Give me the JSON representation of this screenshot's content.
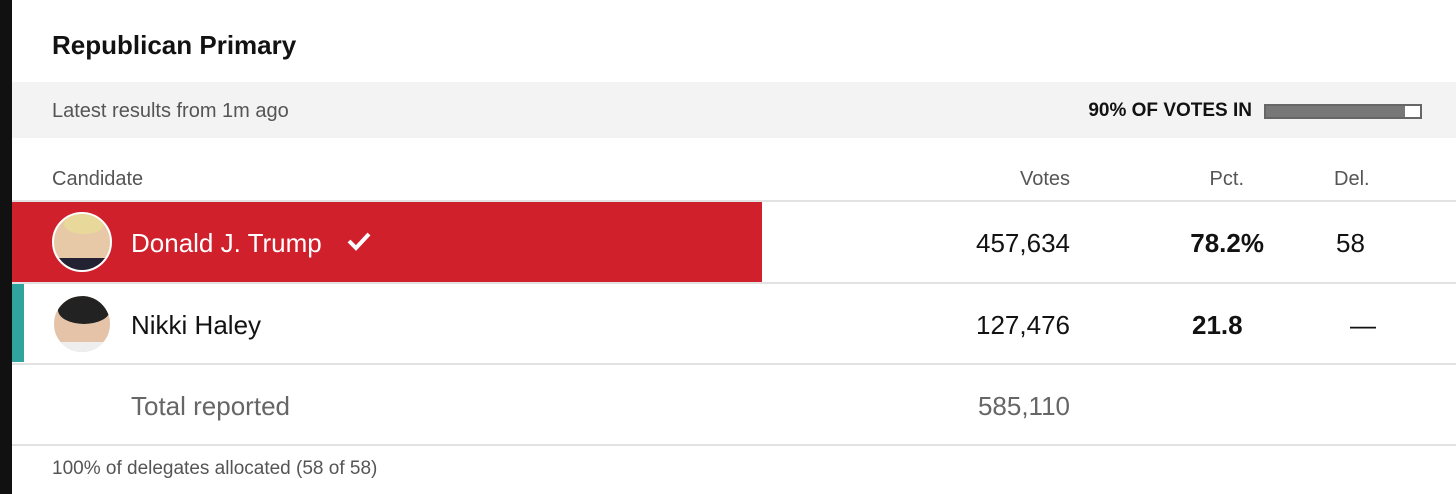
{
  "header": {
    "title": "Republican Primary"
  },
  "status": {
    "updated": "Latest results from 1m ago",
    "votes_in": {
      "value": 90,
      "label": "90% OF VOTES IN"
    }
  },
  "table": {
    "columns": [
      "Candidate",
      "Votes",
      "Pct.",
      "Del."
    ],
    "rows": [
      [
        "Donald J. Trump",
        "457,634",
        "78.2%",
        "58"
      ],
      [
        "Nikki Haley",
        "127,476",
        "21.8",
        "—"
      ]
    ],
    "total": [
      "Total reported",
      "585,110"
    ]
  },
  "footer": "100% of delegates allocated (58 of 58)"
}
